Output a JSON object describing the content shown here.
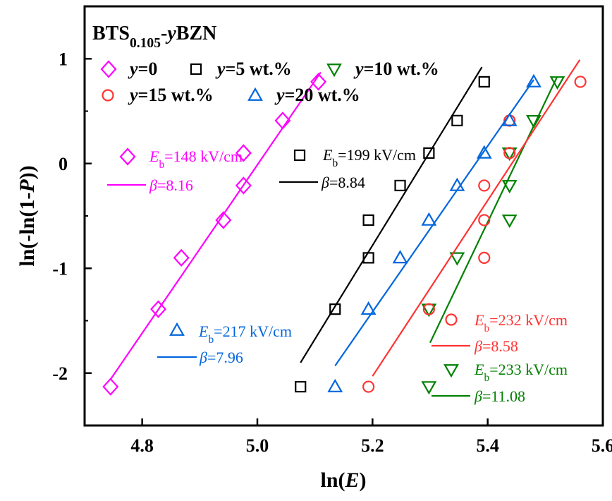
{
  "chart_data": {
    "type": "scatter",
    "title_main": "BTS",
    "title_sub": "0.105",
    "title_dash": "-",
    "title_var": "y",
    "title_end": "BZN",
    "xlabel_pre": "ln(",
    "xlabel_var": "E",
    "xlabel_post": ")",
    "ylabel_pre": "ln(-ln(1-",
    "ylabel_var": "P",
    "ylabel_post": "))",
    "xlim": [
      4.7,
      5.6
    ],
    "ylim": [
      -2.5,
      1.5
    ],
    "xticks": [
      4.8,
      5.0,
      5.2,
      5.4,
      5.6
    ],
    "xtick_labels": [
      "4.8",
      "5.0",
      "5.2",
      "5.4",
      "5.6"
    ],
    "yticks": [
      -2,
      -1,
      0,
      1
    ],
    "ytick_labels": [
      "-2",
      "-1",
      "0",
      "1"
    ],
    "series": [
      {
        "id": "y0",
        "legend_var": "y",
        "legend_rest": "=0",
        "marker": "diamond",
        "color": "#ff00ff",
        "points": [
          [
            4.745,
            -2.13
          ],
          [
            4.828,
            -1.39
          ],
          [
            4.868,
            -0.9
          ],
          [
            4.941,
            -0.54
          ],
          [
            4.976,
            -0.21
          ],
          [
            4.976,
            0.1
          ],
          [
            5.044,
            0.41
          ],
          [
            5.106,
            0.78
          ]
        ],
        "fit": [
          [
            4.745,
            -2.06
          ],
          [
            5.11,
            0.87
          ]
        ],
        "eb_var": "E",
        "eb_sub": "b",
        "eb_value": "=148 kV/cm",
        "beta_sym": "β",
        "beta_value": "=8.16"
      },
      {
        "id": "y5",
        "legend_var": "y",
        "legend_rest": "=5 wt.%",
        "marker": "square",
        "color": "#000000",
        "points": [
          [
            5.075,
            -2.13
          ],
          [
            5.135,
            -1.39
          ],
          [
            5.193,
            -0.9
          ],
          [
            5.193,
            -0.54
          ],
          [
            5.248,
            -0.21
          ],
          [
            5.298,
            0.1
          ],
          [
            5.347,
            0.41
          ],
          [
            5.394,
            0.78
          ]
        ],
        "fit": [
          [
            5.075,
            -1.9
          ],
          [
            5.39,
            0.92
          ]
        ],
        "eb_var": "E",
        "eb_sub": "b",
        "eb_value": "=199 kV/cm",
        "beta_sym": "β",
        "beta_value": "=8.84"
      },
      {
        "id": "y10",
        "legend_var": "y",
        "legend_rest": "=10 wt.%",
        "marker": "triangle-down",
        "color": "#008000",
        "points": [
          [
            5.298,
            -2.13
          ],
          [
            5.298,
            -1.39
          ],
          [
            5.347,
            -0.9
          ],
          [
            5.438,
            -0.54
          ],
          [
            5.438,
            -0.21
          ],
          [
            5.438,
            0.1
          ],
          [
            5.48,
            0.41
          ],
          [
            5.521,
            0.78
          ]
        ],
        "fit": [
          [
            5.3,
            -1.71
          ],
          [
            5.52,
            0.82
          ]
        ],
        "eb_var": "E",
        "eb_sub": "b",
        "eb_value": "=233 kV/cm",
        "beta_sym": "β",
        "beta_value": "=11.08"
      },
      {
        "id": "y15",
        "legend_var": "y",
        "legend_rest": "=15 wt.%",
        "marker": "circle",
        "color": "#ff3333",
        "points": [
          [
            5.193,
            -2.13
          ],
          [
            5.298,
            -1.39
          ],
          [
            5.394,
            -0.9
          ],
          [
            5.394,
            -0.54
          ],
          [
            5.394,
            -0.21
          ],
          [
            5.438,
            0.1
          ],
          [
            5.438,
            0.41
          ],
          [
            5.561,
            0.78
          ]
        ],
        "fit": [
          [
            5.2,
            -2.03
          ],
          [
            5.56,
            0.99
          ]
        ],
        "eb_var": "E",
        "eb_sub": "b",
        "eb_value": "=232 kV/cm",
        "beta_sym": "β",
        "beta_value": "=8.58"
      },
      {
        "id": "y20",
        "legend_var": "y",
        "legend_rest": "=20 wt.%",
        "marker": "triangle-up",
        "color": "#0066dd",
        "points": [
          [
            5.135,
            -2.13
          ],
          [
            5.193,
            -1.39
          ],
          [
            5.248,
            -0.9
          ],
          [
            5.298,
            -0.54
          ],
          [
            5.347,
            -0.21
          ],
          [
            5.394,
            0.1
          ],
          [
            5.438,
            0.41
          ],
          [
            5.48,
            0.78
          ]
        ],
        "fit": [
          [
            5.135,
            -1.93
          ],
          [
            5.48,
            0.8
          ]
        ],
        "eb_var": "E",
        "eb_sub": "b",
        "eb_value": "=217 kV/cm",
        "beta_sym": "β",
        "beta_value": "=7.96"
      }
    ]
  }
}
